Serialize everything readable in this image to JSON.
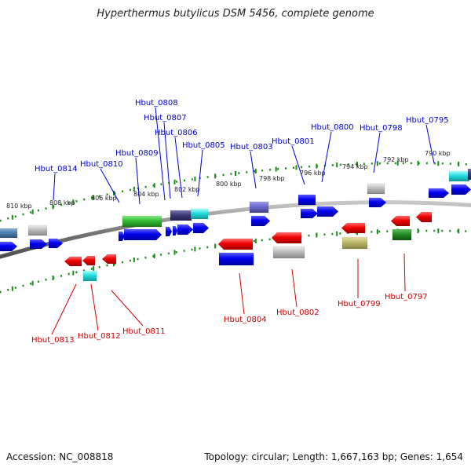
{
  "title": "Hyperthermus butylicus DSM 5456, complete genome",
  "footer": {
    "accession": "Accession: NC_008818",
    "summary": "Topology: circular; Length: 1,667,163 bp; Genes: 1,654"
  },
  "colors": {
    "forward_label": "#0000cc",
    "reverse_label": "#cc0000",
    "backbone": "#8a8a8a",
    "ruler_tick": "#1a8a1a",
    "kbp_label": "#222222"
  },
  "ruler_labels": [
    "810 kbp",
    "808 kbp",
    "806 kbp",
    "804 kbp",
    "802 kbp",
    "800 kbp",
    "798 kbp",
    "796 kbp",
    "794 kbp",
    "792 kbp",
    "790 kbp"
  ],
  "forward_labels": [
    "Hbut_0814",
    "Hbut_0810",
    "Hbut_0809",
    "Hbut_0808",
    "Hbut_0807",
    "Hbut_0806",
    "Hbut_0805",
    "Hbut_0803",
    "Hbut_0801",
    "Hbut_0800",
    "Hbut_0798",
    "Hbut_0795"
  ],
  "reverse_labels": [
    "Hbut_0813",
    "Hbut_0812",
    "Hbut_0811",
    "Hbut_0804",
    "Hbut_0802",
    "Hbut_0799",
    "Hbut_0797"
  ]
}
